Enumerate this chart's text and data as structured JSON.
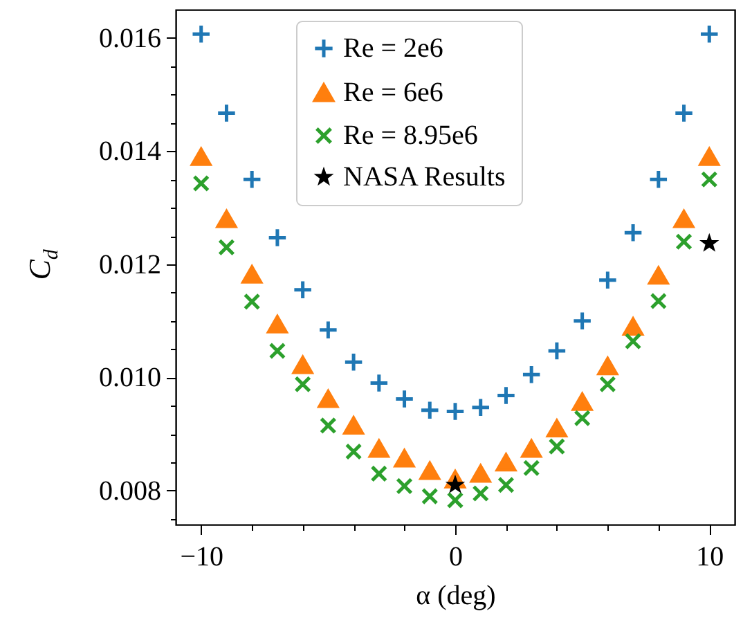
{
  "chart_data": {
    "type": "scatter",
    "xlabel": "α (deg)",
    "ylabel": "C$_{d}$",
    "x": [
      -10,
      -9,
      -8,
      -7,
      -6,
      -5,
      -4,
      -3,
      -2,
      -1,
      0,
      1,
      2,
      3,
      4,
      5,
      6,
      7,
      8,
      9,
      10
    ],
    "series": [
      {
        "name": "Re = 2e6",
        "color": "#1f77b4",
        "marker": "cross",
        "values": [
          0.01607,
          0.01467,
          0.0135,
          0.01247,
          0.01155,
          0.01084,
          0.01027,
          0.0099,
          0.00962,
          0.00942,
          0.0094,
          0.00947,
          0.00968,
          0.01005,
          0.01047,
          0.011,
          0.01172,
          0.01256,
          0.0135,
          0.01467,
          0.01607
        ]
      },
      {
        "name": "Re = 6e6",
        "color": "#ff7f0e",
        "marker": "triangle",
        "values": [
          0.0139,
          0.0128,
          0.01182,
          0.01094,
          0.01022,
          0.00962,
          0.00915,
          0.00874,
          0.00857,
          0.00835,
          0.0082,
          0.0083,
          0.0085,
          0.00874,
          0.0091,
          0.00957,
          0.0102,
          0.0109,
          0.0118,
          0.0128,
          0.0139
        ]
      },
      {
        "name": "Re = 8.95e6",
        "color": "#2ca02c",
        "marker": "x",
        "values": [
          0.01343,
          0.0123,
          0.01134,
          0.01047,
          0.00988,
          0.00915,
          0.00869,
          0.0083,
          0.00808,
          0.0079,
          0.00783,
          0.00795,
          0.0081,
          0.0084,
          0.00878,
          0.00928,
          0.00988,
          0.01064,
          0.01135,
          0.0124,
          0.0135
        ]
      },
      {
        "name": "NASA Results",
        "color": "#000000",
        "marker": "star",
        "x": [
          0,
          10
        ],
        "values": [
          0.0081,
          0.01237
        ]
      }
    ],
    "xlim": [
      -11,
      11
    ],
    "xticks": [
      {
        "value": -10,
        "label": "−10"
      },
      {
        "value": -8,
        "label": null
      },
      {
        "value": -6,
        "label": null
      },
      {
        "value": -4,
        "label": null
      },
      {
        "value": -2,
        "label": null
      },
      0,
      {
        "value": 2,
        "label": null
      },
      {
        "value": 4,
        "label": null
      },
      {
        "value": 6,
        "label": null
      },
      {
        "value": 8,
        "label": null
      },
      10
    ],
    "ylim": [
      0.0074,
      0.0165
    ],
    "yticks": [
      {
        "value": 0.0075,
        "label": null
      },
      0.008,
      {
        "value": 0.0085,
        "label": null
      },
      {
        "value": 0.009,
        "label": null
      },
      {
        "value": 0.0095,
        "label": null
      },
      {
        "value": 0.01,
        "label": "0.010"
      },
      {
        "value": 0.0105,
        "label": null
      },
      {
        "value": 0.011,
        "label": null
      },
      {
        "value": 0.0115,
        "label": null
      },
      0.012,
      {
        "value": 0.0125,
        "label": null
      },
      {
        "value": 0.013,
        "label": null
      },
      {
        "value": 0.0135,
        "label": null
      },
      0.014,
      {
        "value": 0.0145,
        "label": null
      },
      {
        "value": 0.015,
        "label": null
      },
      {
        "value": 0.0155,
        "label": null
      },
      0.016
    ],
    "legend": "top",
    "grid": false
  }
}
